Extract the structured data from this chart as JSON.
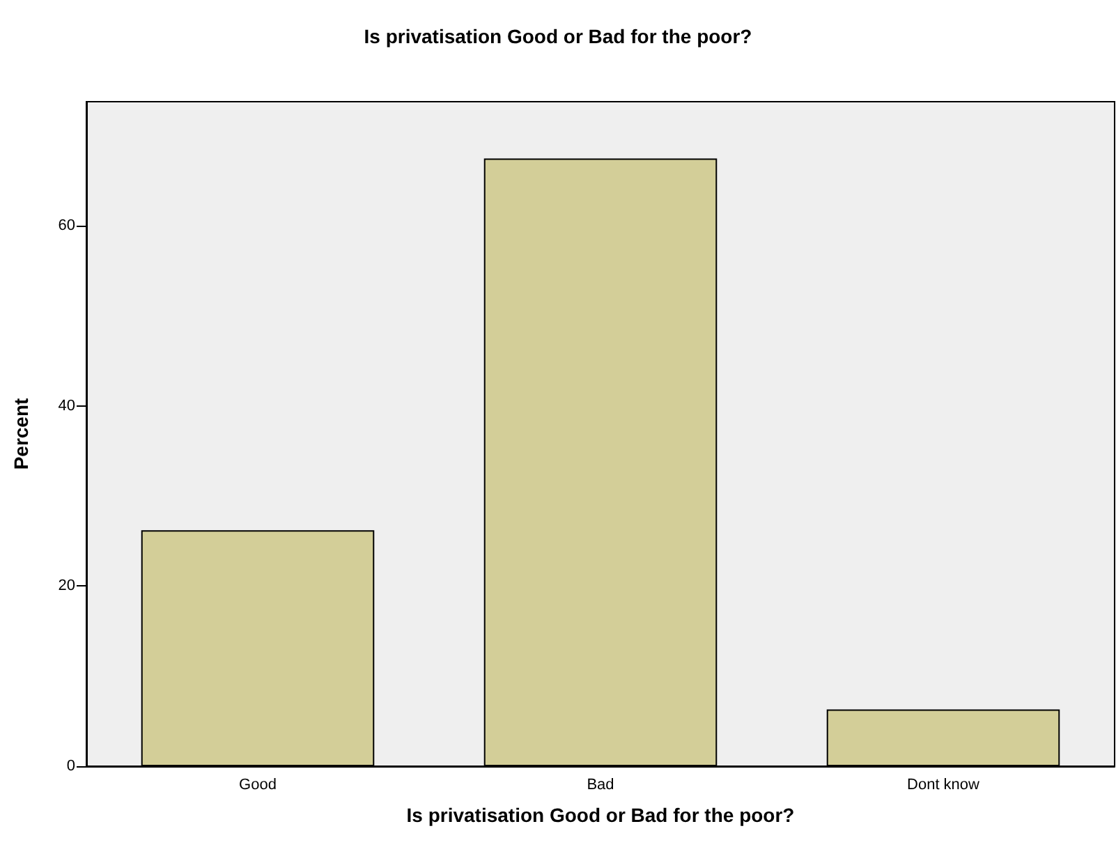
{
  "chart_data": {
    "type": "bar",
    "title": "Is privatisation Good or Bad for the poor?",
    "xlabel": "Is privatisation Good or Bad for the poor?",
    "ylabel": "Percent",
    "categories": [
      "Good",
      "Bad",
      "Dont know"
    ],
    "values": [
      26.2,
      67.5,
      6.3
    ],
    "color": "#d3ce98",
    "ylim": [
      0,
      73.8
    ],
    "yticks": [
      0,
      20,
      40,
      60
    ],
    "grid": false
  }
}
